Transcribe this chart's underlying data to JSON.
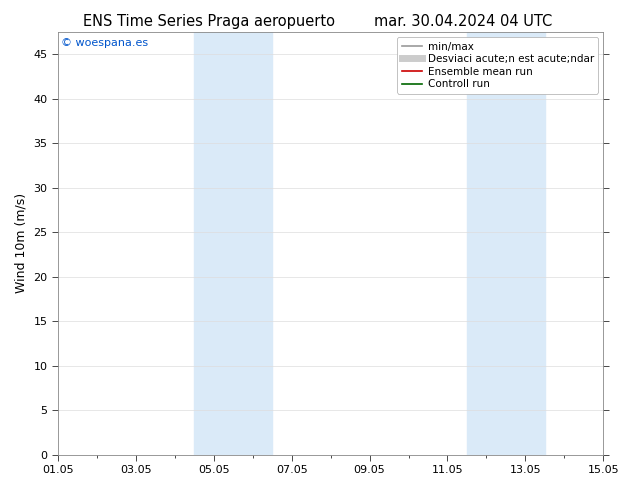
{
  "title_left": "ENS Time Series Praga aeropuerto",
  "title_right": "mar. 30.04.2024 04 UTC",
  "ylabel": "Wind 10m (m/s)",
  "ylim": [
    0,
    47.5
  ],
  "yticks": [
    0,
    5,
    10,
    15,
    20,
    25,
    30,
    35,
    40,
    45
  ],
  "xlim": [
    0,
    14
  ],
  "xtick_labels": [
    "01.05",
    "03.05",
    "05.05",
    "07.05",
    "09.05",
    "11.05",
    "13.05",
    "15.05"
  ],
  "xtick_positions_days": [
    0,
    2,
    4,
    6,
    8,
    10,
    12,
    14
  ],
  "shaded_bands": [
    {
      "start_day": 3.5,
      "end_day": 5.5,
      "color": "#daeaf8"
    },
    {
      "start_day": 10.5,
      "end_day": 12.5,
      "color": "#daeaf8"
    }
  ],
  "copyright_text": "© woespana.es",
  "copyright_color": "#0055cc",
  "legend_entries": [
    {
      "label": "min/max",
      "color": "#999999",
      "lw": 1.2
    },
    {
      "label": "Desviaci acute;n est acute;ndar",
      "color": "#cccccc",
      "lw": 5
    },
    {
      "label": "Ensemble mean run",
      "color": "#cc0000",
      "lw": 1.2
    },
    {
      "label": "Controll run",
      "color": "#006600",
      "lw": 1.2
    }
  ],
  "background_color": "#ffffff",
  "plot_bg_color": "#ffffff",
  "grid_color": "#dddddd",
  "title_fontsize": 10.5,
  "ylabel_fontsize": 9,
  "tick_fontsize": 8,
  "legend_fontsize": 7.5,
  "copyright_fontsize": 8
}
